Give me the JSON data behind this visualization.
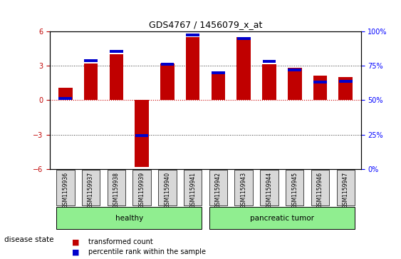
{
  "title": "GDS4767 / 1456079_x_at",
  "samples": [
    "GSM1159936",
    "GSM1159937",
    "GSM1159938",
    "GSM1159939",
    "GSM1159940",
    "GSM1159941",
    "GSM1159942",
    "GSM1159943",
    "GSM1159944",
    "GSM1159945",
    "GSM1159946",
    "GSM1159947"
  ],
  "red_values": [
    1.1,
    3.2,
    4.0,
    -5.8,
    3.2,
    5.5,
    2.5,
    5.5,
    3.1,
    2.8,
    2.1,
    2.0
  ],
  "blue_values": [
    0.15,
    3.45,
    4.25,
    -3.1,
    3.1,
    5.65,
    2.35,
    5.35,
    3.35,
    2.65,
    1.55,
    1.65
  ],
  "ylim": [
    -6,
    6
  ],
  "yticks": [
    -6,
    -3,
    0,
    3,
    6
  ],
  "right_yticks": [
    0,
    25,
    50,
    75,
    100
  ],
  "right_ylabels": [
    "0%",
    "25%",
    "50%",
    "75%",
    "100%"
  ],
  "red_color": "#C00000",
  "blue_color": "#0000CC",
  "bar_width": 0.55,
  "disease_groups": [
    {
      "label": "healthy",
      "start": 0,
      "end": 5
    },
    {
      "label": "pancreatic tumor",
      "start": 6,
      "end": 11
    }
  ],
  "disease_label": "disease state",
  "legend_items": [
    {
      "color": "#C00000",
      "label": "transformed count"
    },
    {
      "color": "#0000CC",
      "label": "percentile rank within the sample"
    }
  ],
  "bg_color": "#f0f0f0",
  "plot_bg": "#ffffff",
  "group_colors": [
    "#90EE90",
    "#90EE90"
  ],
  "dotted_lines": [
    -3,
    0,
    3
  ],
  "zero_line_color": "#CC0000",
  "dotted_color": "#333333"
}
